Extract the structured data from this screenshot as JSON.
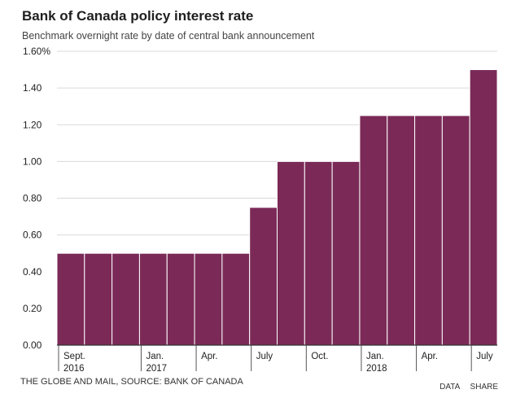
{
  "chart_data": {
    "type": "bar",
    "title": "Bank of Canada policy interest rate",
    "subtitle": "Benchmark overnight rate by date of central bank announcement",
    "xlabel": "",
    "ylabel": "",
    "ylim": [
      0,
      1.6
    ],
    "yticks": [
      {
        "value": 0.0,
        "label": "0.00"
      },
      {
        "value": 0.2,
        "label": "0.20"
      },
      {
        "value": 0.4,
        "label": "0.40"
      },
      {
        "value": 0.6,
        "label": "0.60"
      },
      {
        "value": 0.8,
        "label": "0.80"
      },
      {
        "value": 1.0,
        "label": "1.00"
      },
      {
        "value": 1.2,
        "label": "1.20"
      },
      {
        "value": 1.4,
        "label": "1.40"
      },
      {
        "value": 1.6,
        "label": "1.60%"
      }
    ],
    "values": [
      0.5,
      0.5,
      0.5,
      0.5,
      0.5,
      0.5,
      0.5,
      0.75,
      1.0,
      1.0,
      1.0,
      1.25,
      1.25,
      1.25,
      1.25,
      1.5
    ],
    "xticks": [
      {
        "index": 0,
        "line1": "Sept.",
        "line2": "2016"
      },
      {
        "index": 3,
        "line1": "Jan.",
        "line2": "2017"
      },
      {
        "index": 5,
        "line1": "Apr.",
        "line2": ""
      },
      {
        "index": 7,
        "line1": "July",
        "line2": ""
      },
      {
        "index": 9,
        "line1": "Oct.",
        "line2": ""
      },
      {
        "index": 11,
        "line1": "Jan.",
        "line2": "2018"
      },
      {
        "index": 13,
        "line1": "Apr.",
        "line2": ""
      },
      {
        "index": 15,
        "line1": "July",
        "line2": ""
      }
    ],
    "colors": {
      "bar": "#7b2a57",
      "bar_edge": "#ffffff",
      "grid": "#d9d9d9",
      "axis": "#333333"
    },
    "grid": true
  },
  "footer": {
    "source": "THE GLOBE AND MAIL, SOURCE: BANK OF CANADA",
    "data_label": "DATA",
    "share_label": "SHARE"
  }
}
